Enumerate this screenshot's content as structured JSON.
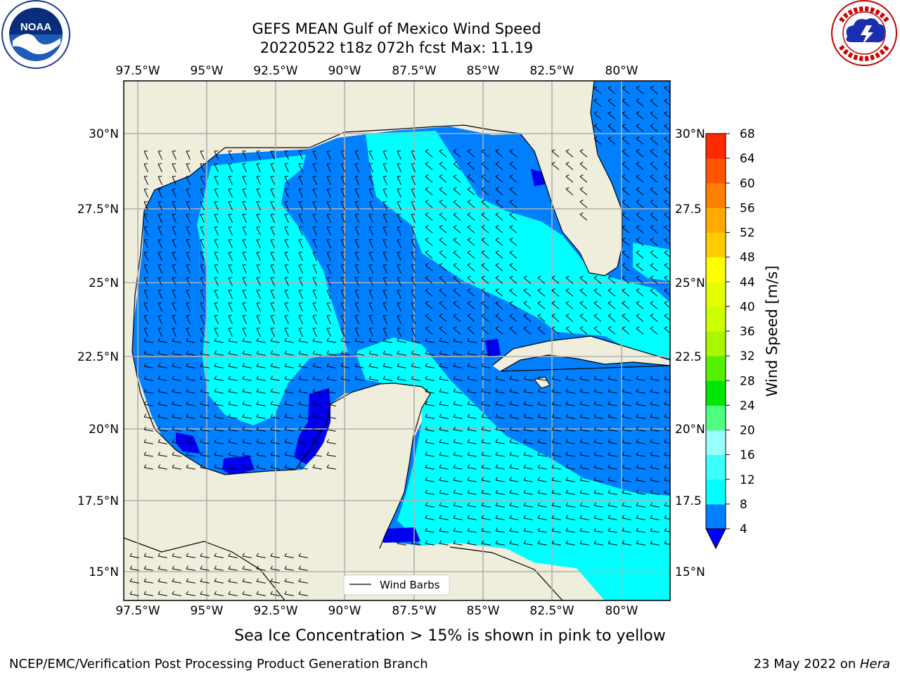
{
  "title": {
    "line1": "GEFS MEAN Gulf of Mexico Wind Speed",
    "line2": "20220522 t18z 072h fcst   Max: 11.19"
  },
  "logos": {
    "left": {
      "text": "NOAA",
      "ring_text": "NATIONAL OCEANIC AND ATMOSPHERIC ADMINISTRATION · U.S. DEPARTMENT OF COMMERCE",
      "icon": "noaa-logo-icon"
    },
    "right": {
      "ring_text": "NATIONAL WEATHER SERVICE",
      "icon": "nws-logo-icon"
    }
  },
  "map": {
    "lon_ticks": [
      "97.5°W",
      "95°W",
      "92.5°W",
      "90°W",
      "87.5°W",
      "85°W",
      "82.5°W",
      "80°W"
    ],
    "lat_ticks_left": [
      "30°N",
      "27.5°N",
      "25°N",
      "22.5°N",
      "20°N",
      "17.5°N",
      "15°N"
    ],
    "lat_ticks_right": [
      "30°N",
      "27.5",
      "25°N",
      "22.5",
      "20°N",
      "17.5",
      "15°N"
    ],
    "legend_label": "Wind Barbs",
    "colors": {
      "land": "#efeddc",
      "level_4_8": "#0080ff",
      "level_8_12": "#00ffff",
      "below_4": "#0000ee",
      "grid": "#b0b0b0"
    }
  },
  "colorbar": {
    "label": "Wind Speed [m/s]",
    "ticks": [
      "4",
      "8",
      "12",
      "16",
      "20",
      "24",
      "28",
      "32",
      "36",
      "40",
      "44",
      "48",
      "52",
      "56",
      "60",
      "64",
      "68"
    ],
    "colors": [
      "#0080ff",
      "#00ffff",
      "#3dffff",
      "#99ffff",
      "#4dff80",
      "#00e600",
      "#55f000",
      "#aaf500",
      "#ccff00",
      "#e6ff00",
      "#ffff00",
      "#ffcc00",
      "#ffaa00",
      "#ff8000",
      "#ff5500",
      "#ff2a00",
      "#ff0000"
    ],
    "extend_color": "#0000ff"
  },
  "note": "Sea Ice Concentration > 15% is shown in pink to yellow",
  "footer": {
    "left": "NCEP/EMC/Verification Post Processing Product Generation Branch",
    "date": "23 May 2022 on ",
    "machine": "Hera"
  }
}
